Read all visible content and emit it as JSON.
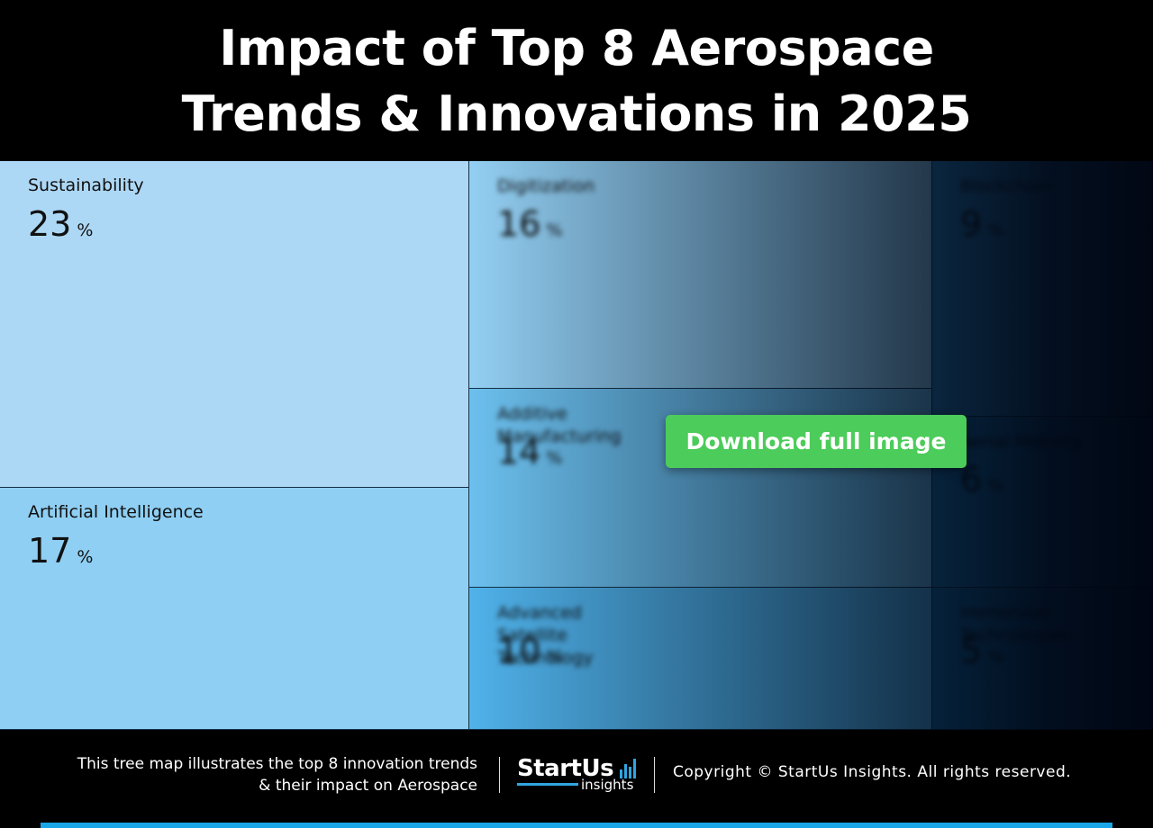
{
  "header": {
    "title_line1": "Impact of Top 8 Aerospace",
    "title_line2": "Trends & Innovations in 2025"
  },
  "chart_data": {
    "type": "treemap",
    "title": "Impact of Top 8 Aerospace Trends & Innovations in 2025",
    "unit": "%",
    "items": [
      {
        "label": "Sustainability",
        "value": 23,
        "color": "#add8f5"
      },
      {
        "label": "Artificial Intelligence",
        "value": 17,
        "color": "#8fcff3"
      },
      {
        "label": "Digitization",
        "value": 16,
        "color": "#93cff2"
      },
      {
        "label": "Additive Manufacturing",
        "value": 14,
        "color": "#6cc0ee"
      },
      {
        "label": "Advanced Satellite Technology",
        "value": 10,
        "color": "#50b2ea"
      },
      {
        "label": "Blockchain",
        "value": 9,
        "color": "#2a86c0"
      },
      {
        "label": "Aerial Mobility",
        "value": 6,
        "color": "#1a7ab6"
      },
      {
        "label": "Immersive Technologies",
        "value": 5,
        "color": "#1673ad"
      }
    ]
  },
  "overlay": {
    "download_label": "Download full image",
    "button_color": "#4ccc5a"
  },
  "footer": {
    "description_line1": "This tree map illustrates the top 8 innovation trends",
    "description_line2": "& their impact on Aerospace",
    "logo_main": "StartUs",
    "logo_sub": "insights",
    "copyright": "Copyright © StartUs Insights. All rights reserved."
  }
}
